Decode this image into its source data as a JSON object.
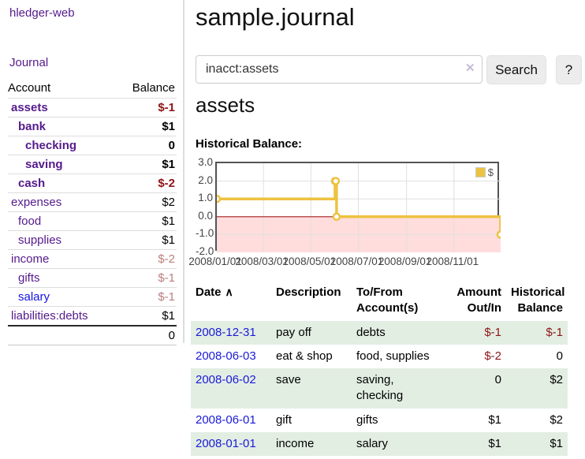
{
  "colors": {
    "link_purple": "#551a8b",
    "link_blue": "#1414e0",
    "negative_red": "#8e1515",
    "negative_muted": "#bd7d7d",
    "row_stripe_green": "#e3eee3",
    "series_yellow": "#edc240",
    "negative_region_pink": "#ffdddd",
    "zero_line_red": "#aa2222",
    "grid_line": "#e0e0e0",
    "plot_border": "#545454"
  },
  "sidebar": {
    "brand": "hledger-web",
    "journal_label": "Journal",
    "accounts_table": {
      "headers": [
        "Account",
        "Balance"
      ],
      "rows": [
        {
          "account": "assets",
          "balance": "$-1",
          "indent": 1,
          "bold": true,
          "balance_class": "neg-strong",
          "link_blue": false
        },
        {
          "account": "bank",
          "balance": "$1",
          "indent": 2,
          "bold": true,
          "balance_class": "",
          "link_blue": false
        },
        {
          "account": "checking",
          "balance": "0",
          "indent": 3,
          "bold": true,
          "balance_class": "",
          "link_blue": false
        },
        {
          "account": "saving",
          "balance": "$1",
          "indent": 3,
          "bold": true,
          "balance_class": "",
          "link_blue": false
        },
        {
          "account": "cash",
          "balance": "$-2",
          "indent": 2,
          "bold": true,
          "balance_class": "neg-strong",
          "link_blue": false
        },
        {
          "account": "expenses",
          "balance": "$2",
          "indent": 1,
          "bold": false,
          "balance_class": "",
          "link_blue": false
        },
        {
          "account": "food",
          "balance": "$1",
          "indent": 2,
          "bold": false,
          "balance_class": "",
          "link_blue": false
        },
        {
          "account": "supplies",
          "balance": "$1",
          "indent": 2,
          "bold": false,
          "balance_class": "",
          "link_blue": false
        },
        {
          "account": "income",
          "balance": "$-2",
          "indent": 1,
          "bold": false,
          "balance_class": "neg-muted",
          "link_blue": false
        },
        {
          "account": "gifts",
          "balance": "$-1",
          "indent": 2,
          "bold": false,
          "balance_class": "neg-muted",
          "link_blue": false
        },
        {
          "account": "salary",
          "balance": "$-1",
          "indent": 2,
          "bold": false,
          "balance_class": "neg-muted",
          "link_blue": true
        },
        {
          "account": "liabilities:debts",
          "balance": "$1",
          "indent": 1,
          "bold": false,
          "balance_class": "",
          "link_blue": false
        }
      ],
      "total": "0"
    }
  },
  "header": {
    "title": "sample.journal"
  },
  "search": {
    "value": "inacct:assets",
    "clear_icon": "✕",
    "button_label": "Search",
    "help_label": "?"
  },
  "account_page": {
    "heading": "assets",
    "chart_label": "Historical Balance:"
  },
  "chart_data": {
    "type": "line",
    "title": "Historical Balance",
    "step": true,
    "series": [
      {
        "name": "$",
        "color": "#edc240",
        "points": [
          [
            "2008-01-01",
            1
          ],
          [
            "2008-06-01",
            2
          ],
          [
            "2008-06-02",
            2
          ],
          [
            "2008-06-03",
            0
          ],
          [
            "2008-12-31",
            -1
          ]
        ]
      }
    ],
    "x_range": [
      "2008-01-01",
      "2008-12-31"
    ],
    "x_ticks": [
      "2008/01/01",
      "2008/03/01",
      "2008/05/01",
      "2008/07/01",
      "2008/09/01",
      "2008/11/01"
    ],
    "y_ticks": [
      3.0,
      2.0,
      1.0,
      0.0,
      -1.0,
      -2.0
    ],
    "ylim": [
      -2,
      3
    ],
    "grid": true,
    "legend_position": "top-right",
    "legend_label": "$",
    "negative_region": {
      "from": 0,
      "to": -2,
      "color": "#ffdddd"
    },
    "zero_line_color": "#aa2222"
  },
  "register_table": {
    "headers": {
      "date": {
        "line1": "Date",
        "line2": "",
        "sort_icon": "∧"
      },
      "description": {
        "line1": "Description",
        "line2": ""
      },
      "accounts": {
        "line1": "To/From",
        "line2": "Account(s)"
      },
      "amount": {
        "line1": "Amount",
        "line2": "Out/In"
      },
      "balance": {
        "line1": "Historical",
        "line2": "Balance"
      }
    },
    "rows": [
      {
        "date": "2008-12-31",
        "description": "pay off",
        "accounts": "debts",
        "amount": "$-1",
        "balance": "$-1",
        "amount_neg": true,
        "balance_neg": true,
        "stripe": true
      },
      {
        "date": "2008-06-03",
        "description": "eat & shop",
        "accounts": "food, supplies",
        "amount": "$-2",
        "balance": "0",
        "amount_neg": true,
        "balance_neg": false,
        "stripe": false
      },
      {
        "date": "2008-06-02",
        "description": "save",
        "accounts": "saving, checking",
        "amount": "0",
        "balance": "$2",
        "amount_neg": false,
        "balance_neg": false,
        "stripe": true
      },
      {
        "date": "2008-06-01",
        "description": "gift",
        "accounts": "gifts",
        "amount": "$1",
        "balance": "$2",
        "amount_neg": false,
        "balance_neg": false,
        "stripe": false
      },
      {
        "date": "2008-01-01",
        "description": "income",
        "accounts": "salary",
        "amount": "$1",
        "balance": "$1",
        "amount_neg": false,
        "balance_neg": false,
        "stripe": true
      }
    ]
  }
}
